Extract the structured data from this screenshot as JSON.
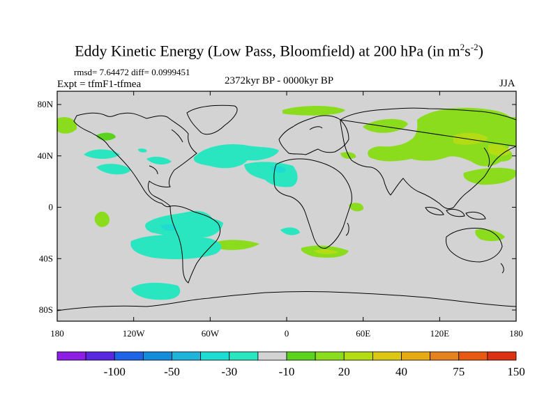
{
  "title": {
    "main": "Eddy Kinetic Energy (Low Pass, Bloomfield) at 200 hPa (in m",
    "sup1": "2",
    "mid": "s",
    "sup2": "-2",
    "end": ")"
  },
  "stats": "rmsd= 7.64472 diff= 0.0999451",
  "experiment": "Expt = tfmF1-tfmea",
  "period": "2372kyr BP - 0000kyr BP",
  "season": "JJA",
  "map": {
    "lat_ticks": [
      "80N",
      "40N",
      "0",
      "40S",
      "80S"
    ],
    "lat_values": [
      80,
      40,
      0,
      -40,
      -80
    ],
    "lon_ticks": [
      "180",
      "120W",
      "60W",
      "0",
      "60E",
      "120E",
      "180"
    ],
    "lon_values": [
      -180,
      -120,
      -60,
      0,
      60,
      120,
      180
    ],
    "background_color": "#d3d3d3"
  },
  "colorbar": {
    "colors": [
      "#8c1ee6",
      "#5a28e0",
      "#1e64e6",
      "#148cdc",
      "#1eb4dc",
      "#1edcd2",
      "#2ae6c0",
      "#d3d3d3",
      "#5ad21e",
      "#8cdc1e",
      "#b4dc14",
      "#dcc814",
      "#e6aa14",
      "#e6821e",
      "#e65a14",
      "#dc3214"
    ],
    "labels": [
      "-100",
      "-50",
      "-30",
      "-10",
      "20",
      "40",
      "75",
      "150"
    ]
  }
}
